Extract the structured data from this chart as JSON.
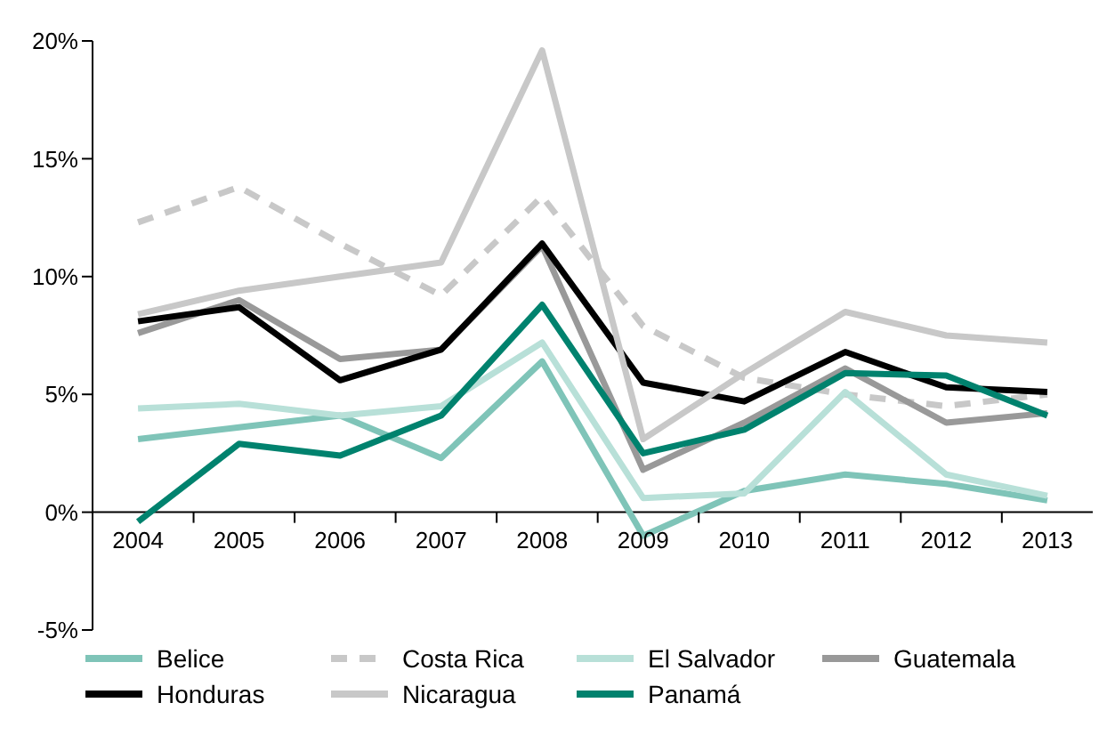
{
  "chart_data": {
    "type": "line",
    "categories": [
      "2004",
      "2005",
      "2006",
      "2007",
      "2008",
      "2009",
      "2010",
      "2011",
      "2012",
      "2013"
    ],
    "series": [
      {
        "name": "Belice",
        "color": "#7fc4b8",
        "values": [
          3.1,
          3.6,
          4.1,
          2.3,
          6.4,
          -1.0,
          0.9,
          1.6,
          1.2,
          0.5
        ]
      },
      {
        "name": "Costa Rica",
        "color": "#c8c8c8",
        "line_style": "dashed",
        "values": [
          12.3,
          13.8,
          11.4,
          9.2,
          13.4,
          7.9,
          5.7,
          5.0,
          4.5,
          5.0
        ]
      },
      {
        "name": "El Salvador",
        "color": "#b8e0d8",
        "values": [
          4.4,
          4.6,
          4.1,
          4.5,
          7.2,
          0.6,
          0.8,
          5.1,
          1.6,
          0.7
        ]
      },
      {
        "name": "Guatemala",
        "color": "#999999",
        "values": [
          7.6,
          9.0,
          6.5,
          6.9,
          11.3,
          1.8,
          3.8,
          6.1,
          3.8,
          4.2
        ]
      },
      {
        "name": "Honduras",
        "color": "#000000",
        "values": [
          8.1,
          8.7,
          5.6,
          6.9,
          11.4,
          5.5,
          4.7,
          6.8,
          5.3,
          5.1
        ]
      },
      {
        "name": "Nicaragua",
        "color": "#c8c8c8",
        "values": [
          8.4,
          9.4,
          10.0,
          10.6,
          19.6,
          3.1,
          5.9,
          8.5,
          7.5,
          7.2
        ]
      },
      {
        "name": "Panamá",
        "color": "#00826e",
        "values": [
          -0.4,
          2.9,
          2.4,
          4.1,
          8.8,
          2.5,
          3.5,
          5.9,
          5.8,
          4.1
        ]
      }
    ],
    "ylim": [
      -5,
      20
    ],
    "yticks": [
      {
        "value": -5,
        "label": "-5%"
      },
      {
        "value": 0,
        "label": "0%"
      },
      {
        "value": 5,
        "label": "5%"
      },
      {
        "value": 10,
        "label": "10%"
      },
      {
        "value": 15,
        "label": "15%"
      },
      {
        "value": 20,
        "label": "20%"
      }
    ],
    "line_style": "solid",
    "marker": "none",
    "grid": false,
    "legend": "bottom"
  }
}
